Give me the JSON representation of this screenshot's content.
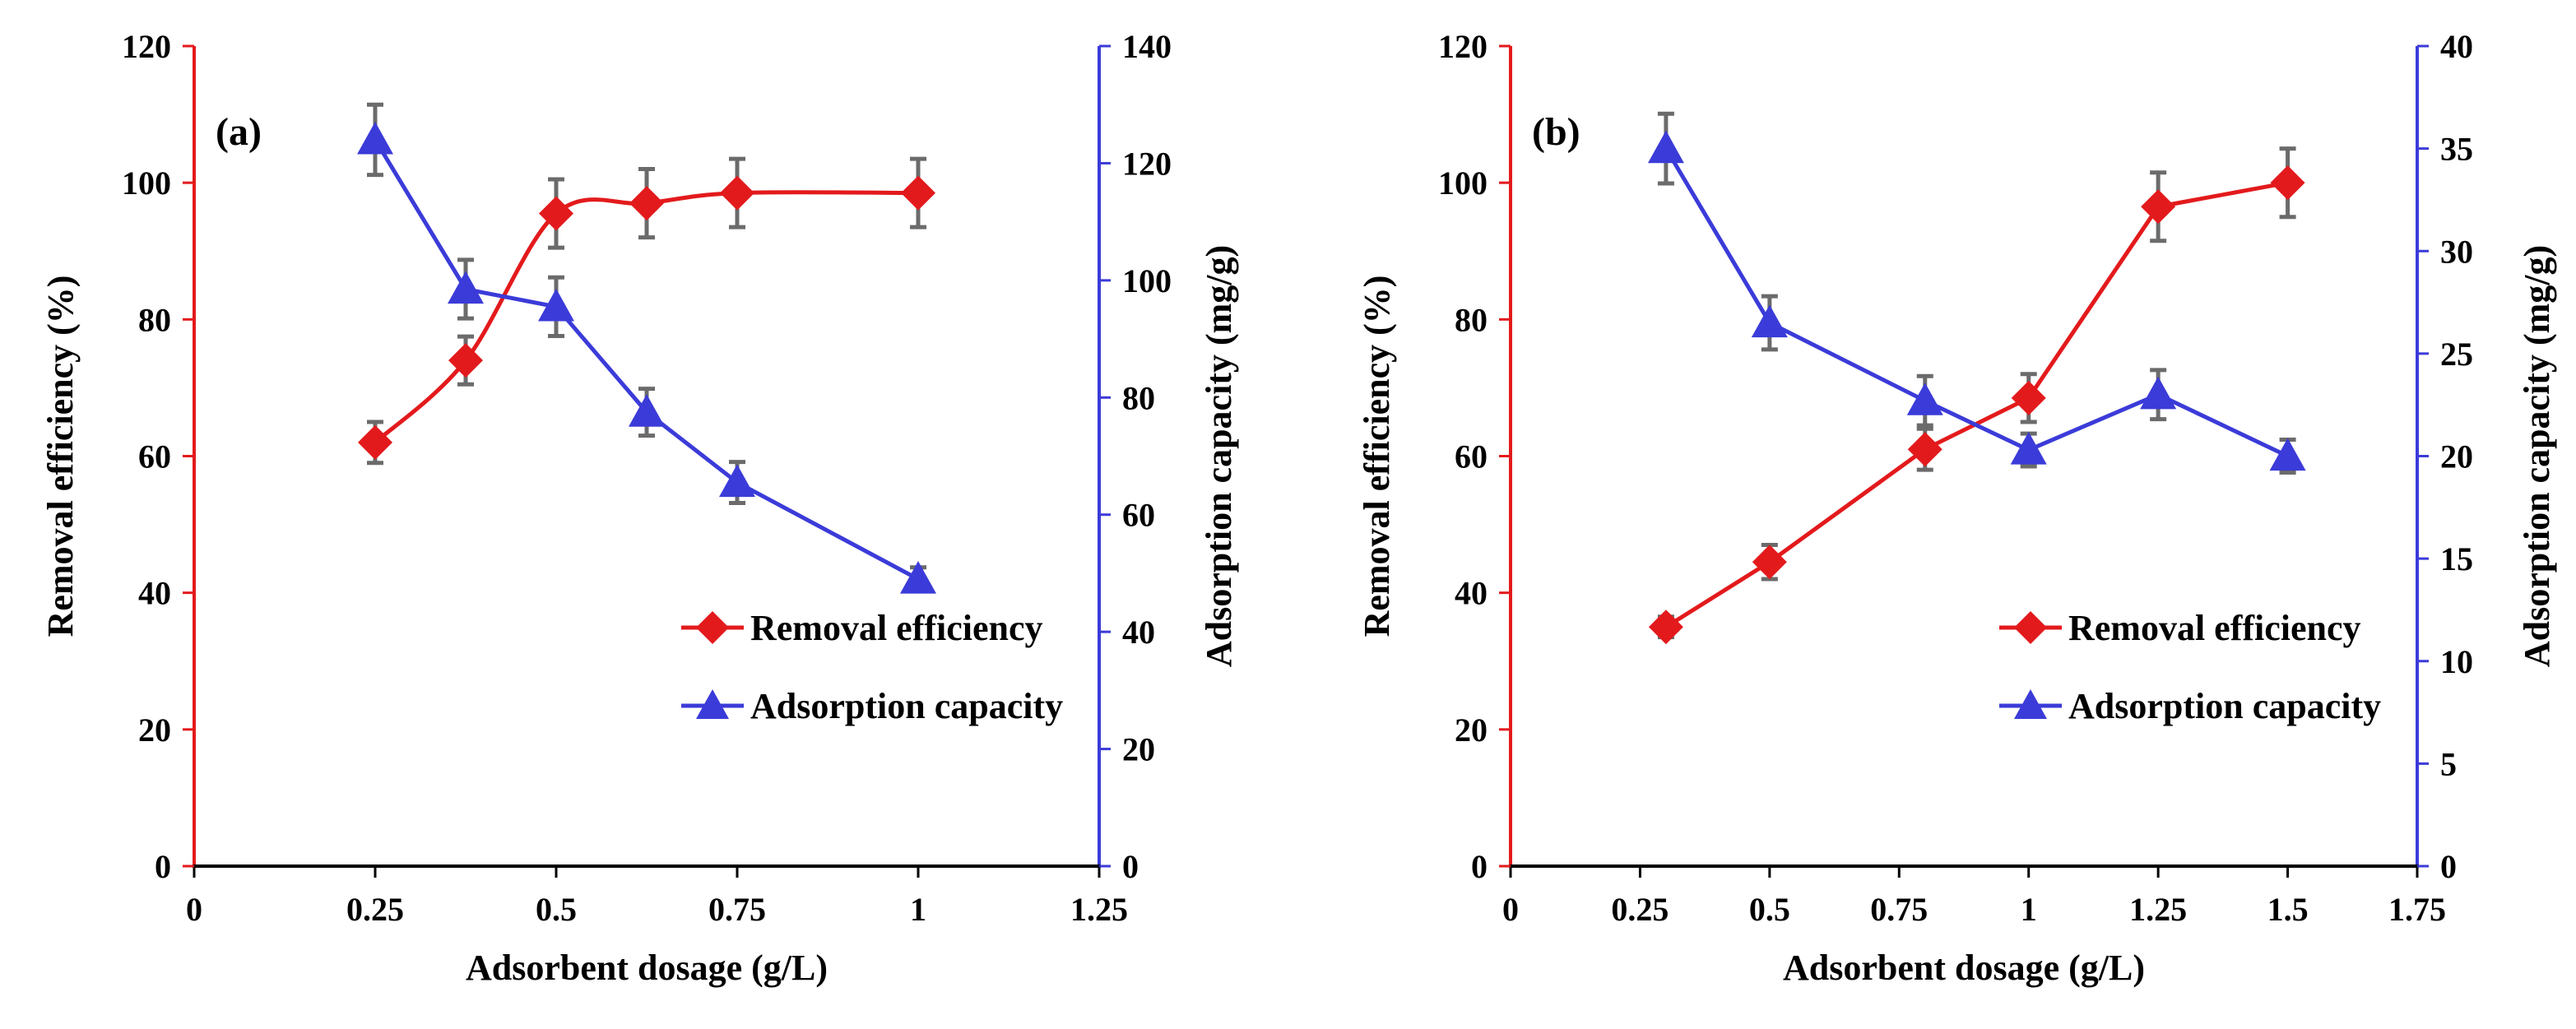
{
  "colors": {
    "removal": "#e31a1c",
    "adsorption": "#3b3bd9",
    "error": "#6b6b6b",
    "axis": "#000000"
  },
  "chart_data": [
    {
      "type": "line",
      "panel_label": "(a)",
      "xlabel": "Adsorbent dosage (g/L)",
      "ylabel_left": "Removal efficiency (%)",
      "ylabel_right": "Adsorption capacity (mg/g)",
      "xlim": [
        0,
        1.25
      ],
      "x_ticks": [
        0,
        0.25,
        0.5,
        0.75,
        1,
        1.25
      ],
      "x_tick_labels": [
        "0",
        "0.25",
        "0.5",
        "0.75",
        "1",
        "1.25"
      ],
      "ylim_left": [
        0,
        120
      ],
      "y_ticks_left": [
        0,
        20,
        40,
        60,
        80,
        100,
        120
      ],
      "ylim_right": [
        0,
        140
      ],
      "y_ticks_right": [
        0,
        20,
        40,
        60,
        80,
        100,
        120,
        140
      ],
      "legend_position": "bottom-right",
      "series": [
        {
          "name": "Removal efficiency",
          "axis": "left",
          "marker": "diamond",
          "smooth": true,
          "x": [
            0.25,
            0.375,
            0.5,
            0.625,
            0.75,
            1.0
          ],
          "y": [
            62,
            74,
            95.5,
            97,
            98.5,
            98.5
          ],
          "err": [
            3,
            3.5,
            5,
            5,
            5,
            5
          ]
        },
        {
          "name": "Adsorption capacity",
          "axis": "right",
          "marker": "triangle",
          "smooth": false,
          "x": [
            0.25,
            0.375,
            0.5,
            0.625,
            0.75,
            1.0
          ],
          "y": [
            124,
            98.5,
            95.5,
            77.5,
            65.5,
            49
          ],
          "err": [
            6,
            5,
            5,
            4,
            3.5,
            2
          ]
        }
      ]
    },
    {
      "type": "line",
      "panel_label": "(b)",
      "xlabel": "Adsorbent dosage (g/L)",
      "ylabel_left": "Removal efficiency (%)",
      "ylabel_right": "Adsorption capacity (mg/g)",
      "xlim": [
        0,
        1.75
      ],
      "x_ticks": [
        0,
        0.25,
        0.5,
        0.75,
        1,
        1.25,
        1.5,
        1.75
      ],
      "x_tick_labels": [
        "0",
        "0.25",
        "0.5",
        "0.75",
        "1",
        "1.25",
        "1.5",
        "1.75"
      ],
      "ylim_left": [
        0,
        120
      ],
      "y_ticks_left": [
        0,
        20,
        40,
        60,
        80,
        100,
        120
      ],
      "ylim_right": [
        0,
        40
      ],
      "y_ticks_right": [
        0,
        5,
        10,
        15,
        20,
        25,
        30,
        35,
        40
      ],
      "legend_position": "bottom-right",
      "series": [
        {
          "name": "Removal efficiency",
          "axis": "left",
          "marker": "diamond",
          "smooth": false,
          "x": [
            0.3,
            0.5,
            0.8,
            1.0,
            1.25,
            1.5
          ],
          "y": [
            35,
            44.5,
            61,
            68.5,
            96.5,
            100
          ],
          "err": [
            1.5,
            2.5,
            3,
            3.5,
            5,
            5
          ]
        },
        {
          "name": "Adsorption capacity",
          "axis": "right",
          "marker": "triangle",
          "smooth": false,
          "x": [
            0.3,
            0.5,
            0.8,
            1.0,
            1.25,
            1.5
          ],
          "y": [
            35,
            26.5,
            22.7,
            20.3,
            23,
            20
          ],
          "err": [
            1.7,
            1.3,
            1.2,
            0.8,
            1.2,
            0.8
          ]
        }
      ]
    }
  ]
}
